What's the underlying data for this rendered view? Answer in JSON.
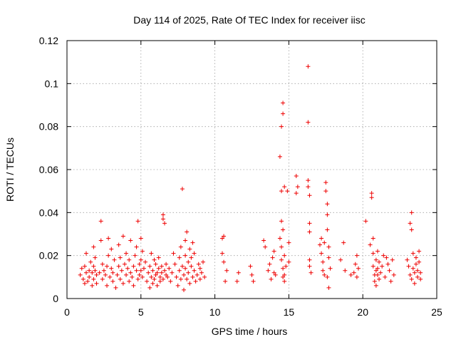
{
  "chart_data": {
    "type": "scatter",
    "title": "Day 114 of 2025, Rate Of TEC Index for receiver iisc",
    "xlabel": "GPS time / hours",
    "ylabel": "ROTI / TECUs",
    "xlim": [
      0,
      25
    ],
    "ylim": [
      0,
      0.12
    ],
    "xticks": [
      0,
      5,
      10,
      15,
      20,
      25
    ],
    "xtick_labels": [
      "0",
      "5",
      "10",
      "15",
      "20",
      "25"
    ],
    "yticks": [
      0,
      0.02,
      0.04,
      0.06,
      0.08,
      0.1,
      0.12
    ],
    "ytick_labels": [
      "0",
      "0.02",
      "0.04",
      "0.06",
      "0.08",
      "0.1",
      "0.12"
    ],
    "grid": true,
    "marker": "plus",
    "color": "#ee0000",
    "series": [
      {
        "name": "ROTI",
        "points": [
          [
            0.9,
            0.011
          ],
          [
            1.0,
            0.014
          ],
          [
            1.1,
            0.009
          ],
          [
            1.2,
            0.007
          ],
          [
            1.2,
            0.015
          ],
          [
            1.3,
            0.021
          ],
          [
            1.3,
            0.012
          ],
          [
            1.4,
            0.008
          ],
          [
            1.5,
            0.013
          ],
          [
            1.5,
            0.01
          ],
          [
            1.6,
            0.017
          ],
          [
            1.7,
            0.006
          ],
          [
            1.7,
            0.012
          ],
          [
            1.8,
            0.015
          ],
          [
            1.8,
            0.024
          ],
          [
            1.8,
            0.009
          ],
          [
            1.9,
            0.019
          ],
          [
            1.9,
            0.013
          ],
          [
            2.0,
            0.011
          ],
          [
            2.0,
            0.007
          ],
          [
            2.2,
            0.012
          ],
          [
            2.3,
            0.027
          ],
          [
            2.3,
            0.036
          ],
          [
            2.4,
            0.016
          ],
          [
            2.4,
            0.009
          ],
          [
            2.5,
            0.013
          ],
          [
            2.6,
            0.011
          ],
          [
            2.7,
            0.015
          ],
          [
            2.7,
            0.006
          ],
          [
            2.8,
            0.02
          ],
          [
            2.8,
            0.028
          ],
          [
            2.9,
            0.01
          ],
          [
            3.0,
            0.014
          ],
          [
            3.0,
            0.023
          ],
          [
            3.1,
            0.008
          ],
          [
            3.1,
            0.012
          ],
          [
            3.2,
            0.018
          ],
          [
            3.3,
            0.005
          ],
          [
            3.4,
            0.011
          ],
          [
            3.5,
            0.015
          ],
          [
            3.5,
            0.025
          ],
          [
            3.6,
            0.009
          ],
          [
            3.6,
            0.019
          ],
          [
            3.7,
            0.013
          ],
          [
            3.8,
            0.007
          ],
          [
            3.8,
            0.029
          ],
          [
            3.9,
            0.016
          ],
          [
            4.0,
            0.011
          ],
          [
            4.0,
            0.021
          ],
          [
            4.1,
            0.014
          ],
          [
            4.2,
            0.008
          ],
          [
            4.2,
            0.018
          ],
          [
            4.3,
            0.012
          ],
          [
            4.3,
            0.027
          ],
          [
            4.4,
            0.01
          ],
          [
            4.5,
            0.015
          ],
          [
            4.5,
            0.006
          ],
          [
            4.6,
            0.02
          ],
          [
            4.7,
            0.013
          ],
          [
            4.7,
            0.024
          ],
          [
            4.8,
            0.009
          ],
          [
            4.8,
            0.036
          ],
          [
            4.9,
            0.016
          ],
          [
            4.9,
            0.011
          ],
          [
            5.0,
            0.018
          ],
          [
            5.0,
            0.028
          ],
          [
            5.0,
            0.013
          ],
          [
            5.1,
            0.01
          ],
          [
            5.1,
            0.022
          ],
          [
            5.2,
            0.014
          ],
          [
            5.3,
            0.017
          ],
          [
            5.4,
            0.008
          ],
          [
            5.5,
            0.012
          ],
          [
            5.6,
            0.005
          ],
          [
            5.6,
            0.015
          ],
          [
            5.7,
            0.021
          ],
          [
            5.7,
            0.01
          ],
          [
            5.8,
            0.007
          ],
          [
            5.8,
            0.013
          ],
          [
            5.9,
            0.018
          ],
          [
            5.9,
            0.009
          ],
          [
            6.0,
            0.011
          ],
          [
            6.0,
            0.016
          ],
          [
            6.1,
            0.006
          ],
          [
            6.1,
            0.012
          ],
          [
            6.2,
            0.014
          ],
          [
            6.2,
            0.019
          ],
          [
            6.3,
            0.01
          ],
          [
            6.3,
            0.008
          ],
          [
            6.4,
            0.015
          ],
          [
            6.4,
            0.012
          ],
          [
            6.5,
            0.039
          ],
          [
            6.5,
            0.037
          ],
          [
            6.5,
            0.009
          ],
          [
            6.6,
            0.013
          ],
          [
            6.6,
            0.035
          ],
          [
            6.7,
            0.011
          ],
          [
            6.7,
            0.016
          ],
          [
            6.8,
            0.01
          ],
          [
            6.9,
            0.014
          ],
          [
            7.0,
            0.008
          ],
          [
            7.1,
            0.012
          ],
          [
            7.2,
            0.021
          ],
          [
            7.3,
            0.016
          ],
          [
            7.4,
            0.01
          ],
          [
            7.5,
            0.006
          ],
          [
            7.6,
            0.013
          ],
          [
            7.6,
            0.019
          ],
          [
            7.7,
            0.009
          ],
          [
            7.7,
            0.024
          ],
          [
            7.8,
            0.051
          ],
          [
            7.8,
            0.015
          ],
          [
            7.9,
            0.011
          ],
          [
            7.9,
            0.004
          ],
          [
            8.0,
            0.02
          ],
          [
            8.0,
            0.014
          ],
          [
            8.0,
            0.027
          ],
          [
            8.1,
            0.009
          ],
          [
            8.1,
            0.031
          ],
          [
            8.2,
            0.017
          ],
          [
            8.2,
            0.012
          ],
          [
            8.3,
            0.023
          ],
          [
            8.3,
            0.007
          ],
          [
            8.4,
            0.015
          ],
          [
            8.4,
            0.019
          ],
          [
            8.5,
            0.01
          ],
          [
            8.5,
            0.026
          ],
          [
            8.6,
            0.013
          ],
          [
            8.6,
            0.021
          ],
          [
            8.7,
            0.008
          ],
          [
            8.8,
            0.011
          ],
          [
            8.9,
            0.016
          ],
          [
            9.0,
            0.014
          ],
          [
            9.0,
            0.009
          ],
          [
            9.1,
            0.012
          ],
          [
            9.2,
            0.017
          ],
          [
            9.3,
            0.01
          ],
          [
            10.5,
            0.021
          ],
          [
            10.5,
            0.028
          ],
          [
            10.6,
            0.017
          ],
          [
            10.6,
            0.029
          ],
          [
            10.7,
            0.008
          ],
          [
            10.8,
            0.013
          ],
          [
            11.5,
            0.008
          ],
          [
            11.6,
            0.012
          ],
          [
            12.4,
            0.015
          ],
          [
            12.5,
            0.011
          ],
          [
            12.6,
            0.008
          ],
          [
            13.3,
            0.027
          ],
          [
            13.4,
            0.024
          ],
          [
            13.6,
            0.013
          ],
          [
            13.7,
            0.016
          ],
          [
            13.8,
            0.009
          ],
          [
            13.9,
            0.019
          ],
          [
            14.0,
            0.022
          ],
          [
            14.0,
            0.012
          ],
          [
            14.1,
            0.011
          ],
          [
            14.4,
            0.066
          ],
          [
            14.4,
            0.028
          ],
          [
            14.5,
            0.08
          ],
          [
            14.5,
            0.05
          ],
          [
            14.5,
            0.036
          ],
          [
            14.5,
            0.024
          ],
          [
            14.5,
            0.018
          ],
          [
            14.6,
            0.091
          ],
          [
            14.6,
            0.086
          ],
          [
            14.6,
            0.032
          ],
          [
            14.6,
            0.014
          ],
          [
            14.6,
            0.01
          ],
          [
            14.7,
            0.052
          ],
          [
            14.7,
            0.02
          ],
          [
            14.7,
            0.011
          ],
          [
            14.7,
            0.008
          ],
          [
            14.8,
            0.015
          ],
          [
            14.9,
            0.05
          ],
          [
            15.0,
            0.017
          ],
          [
            15.0,
            0.026
          ],
          [
            15.5,
            0.057
          ],
          [
            15.5,
            0.049
          ],
          [
            15.6,
            0.052
          ],
          [
            16.3,
            0.108
          ],
          [
            16.3,
            0.082
          ],
          [
            16.3,
            0.055
          ],
          [
            16.3,
            0.052
          ],
          [
            16.4,
            0.048
          ],
          [
            16.4,
            0.035
          ],
          [
            16.4,
            0.031
          ],
          [
            16.4,
            0.018
          ],
          [
            16.4,
            0.015
          ],
          [
            16.5,
            0.012
          ],
          [
            17.1,
            0.025
          ],
          [
            17.2,
            0.021
          ],
          [
            17.2,
            0.028
          ],
          [
            17.3,
            0.017
          ],
          [
            17.3,
            0.013
          ],
          [
            17.4,
            0.011
          ],
          [
            17.4,
            0.026
          ],
          [
            17.5,
            0.054
          ],
          [
            17.5,
            0.05
          ],
          [
            17.6,
            0.044
          ],
          [
            17.6,
            0.039
          ],
          [
            17.6,
            0.032
          ],
          [
            17.6,
            0.01
          ],
          [
            17.7,
            0.024
          ],
          [
            17.7,
            0.019
          ],
          [
            17.7,
            0.005
          ],
          [
            17.8,
            0.014
          ],
          [
            18.5,
            0.018
          ],
          [
            18.7,
            0.026
          ],
          [
            18.8,
            0.013
          ],
          [
            19.2,
            0.011
          ],
          [
            19.4,
            0.012
          ],
          [
            19.5,
            0.016
          ],
          [
            19.6,
            0.02
          ],
          [
            19.6,
            0.01
          ],
          [
            19.7,
            0.014
          ],
          [
            20.2,
            0.036
          ],
          [
            20.5,
            0.025
          ],
          [
            20.6,
            0.049
          ],
          [
            20.6,
            0.047
          ],
          [
            20.7,
            0.028
          ],
          [
            20.7,
            0.021
          ],
          [
            20.7,
            0.015
          ],
          [
            20.8,
            0.011
          ],
          [
            20.8,
            0.008
          ],
          [
            20.9,
            0.018
          ],
          [
            20.9,
            0.013
          ],
          [
            20.9,
            0.006
          ],
          [
            21.0,
            0.022
          ],
          [
            21.0,
            0.014
          ],
          [
            21.0,
            0.011
          ],
          [
            21.1,
            0.009
          ],
          [
            21.1,
            0.017
          ],
          [
            21.2,
            0.012
          ],
          [
            21.3,
            0.015
          ],
          [
            21.4,
            0.02
          ],
          [
            21.5,
            0.01
          ],
          [
            21.6,
            0.019
          ],
          [
            21.7,
            0.016
          ],
          [
            21.8,
            0.013
          ],
          [
            21.9,
            0.008
          ],
          [
            22.0,
            0.018
          ],
          [
            22.1,
            0.011
          ],
          [
            23.0,
            0.018
          ],
          [
            23.1,
            0.015
          ],
          [
            23.2,
            0.011
          ],
          [
            23.2,
            0.035
          ],
          [
            23.3,
            0.032
          ],
          [
            23.3,
            0.04
          ],
          [
            23.3,
            0.009
          ],
          [
            23.4,
            0.014
          ],
          [
            23.4,
            0.021
          ],
          [
            23.5,
            0.007
          ],
          [
            23.5,
            0.012
          ],
          [
            23.6,
            0.016
          ],
          [
            23.6,
            0.019
          ],
          [
            23.7,
            0.01
          ],
          [
            23.7,
            0.013
          ],
          [
            23.8,
            0.022
          ],
          [
            23.8,
            0.017
          ],
          [
            23.9,
            0.012
          ],
          [
            23.9,
            0.009
          ]
        ]
      }
    ]
  }
}
